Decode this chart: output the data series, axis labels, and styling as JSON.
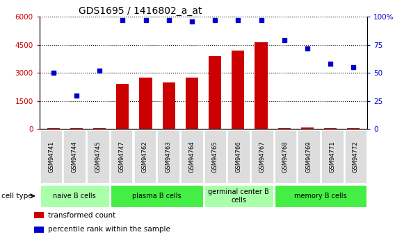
{
  "title": "GDS1695 / 1416802_a_at",
  "samples": [
    "GSM94741",
    "GSM94744",
    "GSM94745",
    "GSM94747",
    "GSM94762",
    "GSM94763",
    "GSM94764",
    "GSM94765",
    "GSM94766",
    "GSM94767",
    "GSM94768",
    "GSM94769",
    "GSM94771",
    "GSM94772"
  ],
  "transformed_count": [
    60,
    55,
    60,
    2400,
    2750,
    2500,
    2750,
    3900,
    4200,
    4650,
    55,
    100,
    55,
    60
  ],
  "percentile_rank": [
    50,
    30,
    52,
    97,
    97,
    97,
    96,
    97,
    97,
    97,
    79,
    72,
    58,
    55
  ],
  "bar_color": "#cc0000",
  "dot_color": "#0000cc",
  "left_ylim": [
    0,
    6000
  ],
  "right_ylim": [
    0,
    100
  ],
  "left_yticks": [
    0,
    1500,
    3000,
    4500,
    6000
  ],
  "right_yticks": [
    0,
    25,
    50,
    75,
    100
  ],
  "left_yticklabels": [
    "0",
    "1500",
    "3000",
    "4500",
    "6000"
  ],
  "right_yticklabels": [
    "0",
    "25",
    "50",
    "75",
    "100%"
  ],
  "cell_groups": [
    {
      "label": "naive B cells",
      "start": 0,
      "end": 3,
      "color": "#aaffaa"
    },
    {
      "label": "plasma B cells",
      "start": 3,
      "end": 7,
      "color": "#44ee44"
    },
    {
      "label": "germinal center B\ncells",
      "start": 7,
      "end": 10,
      "color": "#aaffaa"
    },
    {
      "label": "memory B cells",
      "start": 10,
      "end": 14,
      "color": "#44ee44"
    }
  ],
  "cell_type_label": "cell type",
  "legend_items": [
    {
      "color": "#cc0000",
      "label": "transformed count"
    },
    {
      "color": "#0000cc",
      "label": "percentile rank within the sample"
    }
  ],
  "title_fontsize": 10,
  "tick_fontsize": 7.5,
  "label_fontsize": 8,
  "bar_width": 0.55
}
